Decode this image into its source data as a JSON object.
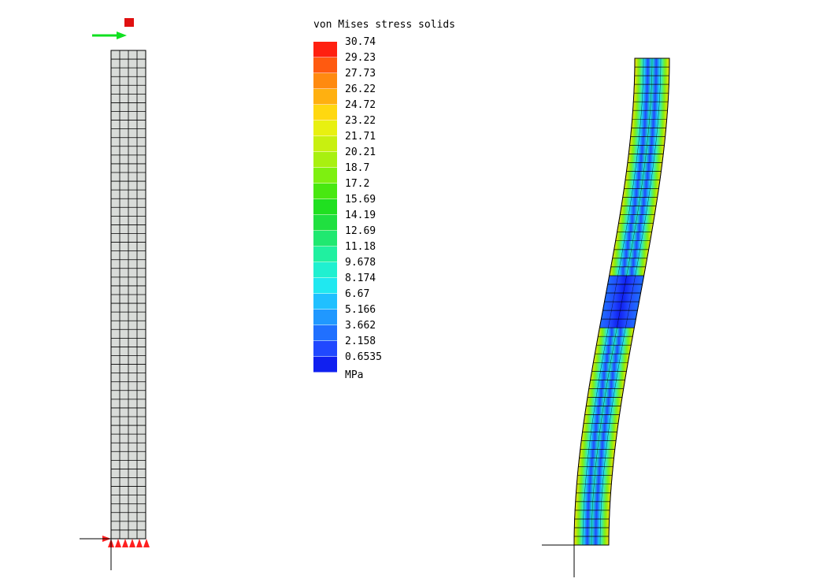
{
  "legend": {
    "title": "von Mises stress solids",
    "unit": "MPa",
    "ticks": [
      "30.74",
      "29.23",
      "27.73",
      "26.22",
      "24.72",
      "23.22",
      "21.71",
      "20.21",
      "18.7",
      "17.2",
      "15.69",
      "14.19",
      "12.69",
      "11.18",
      "9.678",
      "8.174",
      "6.67",
      "5.166",
      "3.662",
      "2.158",
      "0.6535"
    ],
    "colors": [
      "#ff2010",
      "#ff5a10",
      "#ff8a10",
      "#ffb010",
      "#ffd810",
      "#e8f010",
      "#c8f010",
      "#a8f010",
      "#7ef010",
      "#48e810",
      "#20e020",
      "#20e040",
      "#20e870",
      "#20f0a0",
      "#20f0d0",
      "#20e8f0",
      "#20c0ff",
      "#2098ff",
      "#2070ff",
      "#2048ff",
      "#1020f0"
    ]
  },
  "colors": {
    "mesh_fill": "#d9dcd9",
    "mesh_line": "#000000",
    "constraint": "#ff2020",
    "load_arrow": "#10e020",
    "load_node": "#e01010"
  }
}
